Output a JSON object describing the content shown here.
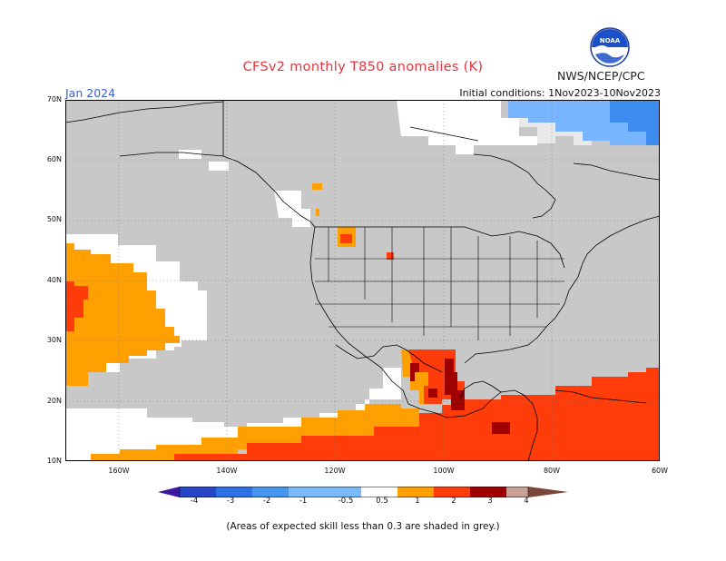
{
  "header": {
    "title": "CFSv2 monthly T850 anomalies (K)",
    "agency": "NWS/NCEP/CPC",
    "month": "Jan 2024",
    "initial_conditions": "Initial conditions: 1Nov2023-10Nov2023",
    "logo_text": "NOAA"
  },
  "map": {
    "lat_labels": [
      "70N",
      "60N",
      "50N",
      "40N",
      "30N",
      "20N",
      "10N"
    ],
    "lon_labels": [
      "160W",
      "140W",
      "120W",
      "100W",
      "80W",
      "60W"
    ],
    "colors": {
      "grey": "#c8c8c8",
      "white": "#ffffff",
      "orange": "#ff9f00",
      "red_orange": "#ff3c0a",
      "dark_red": "#a00000",
      "light_blue": "#78b4ff",
      "mid_blue": "#3c8cf0",
      "land_line": "#000000"
    }
  },
  "colorbar": {
    "labels": [
      "-4",
      "-3",
      "-2",
      "-1",
      "-0.5",
      "0.5",
      "1",
      "2",
      "3",
      "4"
    ],
    "colors": [
      "#3a1b9e",
      "#2846c8",
      "#2e6ee6",
      "#4696f0",
      "#7ab9fa",
      "#ffffff",
      "#ff9f00",
      "#ff3c0a",
      "#a00000",
      "#c8a096",
      "#7a4637"
    ]
  },
  "footnote": "(Areas of expected skill less than 0.3 are shaded in grey.)"
}
